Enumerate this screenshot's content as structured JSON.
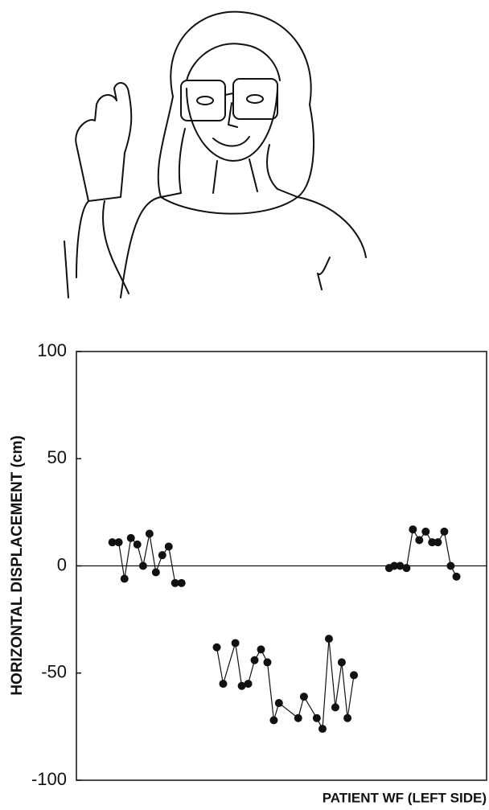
{
  "chart_data": {
    "type": "line",
    "ylabel": "HORIZONTAL DISPLACEMENT (cm)",
    "xlabel": "PATIENT WF (LEFT SIDE)",
    "categories": [
      null,
      null,
      null,
      null,
      null,
      null,
      null,
      null,
      null,
      null,
      null,
      null,
      null,
      null,
      null,
      null,
      null,
      null,
      null,
      null,
      null,
      null,
      null,
      null,
      null,
      null,
      null,
      null,
      null,
      null,
      null,
      null,
      null,
      null,
      null,
      null,
      null,
      null,
      null,
      null,
      null,
      null,
      null,
      null,
      null
    ],
    "x": [
      5.6,
      6.6,
      7.5,
      8.5,
      9.5,
      10.4,
      11.4,
      12.4,
      13.4,
      14.4,
      15.4,
      16.4,
      null,
      21.9,
      22.9,
      24.8,
      25.8,
      26.8,
      27.8,
      28.8,
      29.8,
      30.8,
      31.6,
      34.6,
      35.5,
      37.5,
      38.4,
      39.4,
      40.4,
      41.4,
      42.3,
      43.3,
      null,
      48.8,
      49.6,
      50.5,
      51.5,
      52.5,
      53.5,
      54.5,
      55.5,
      56.4,
      57.4,
      58.4,
      59.3
    ],
    "values": [
      11,
      11,
      -6,
      13,
      10,
      0,
      15,
      -3,
      5,
      9,
      -8,
      -8,
      null,
      -38,
      -55,
      -36,
      -56,
      -55,
      -44,
      -39,
      -45,
      -72,
      -64,
      -71,
      -61,
      -71,
      -76,
      -34,
      -66,
      -45,
      -71,
      -51,
      null,
      -1,
      0,
      0,
      -1,
      17,
      12,
      16,
      11,
      11,
      16,
      0,
      -5
    ],
    "color": "#111111",
    "xlim": [
      0,
      64
    ],
    "ylim": [
      -100,
      100
    ],
    "yticks": [
      -100,
      -50,
      0,
      50,
      100
    ],
    "zero_line": true
  }
}
